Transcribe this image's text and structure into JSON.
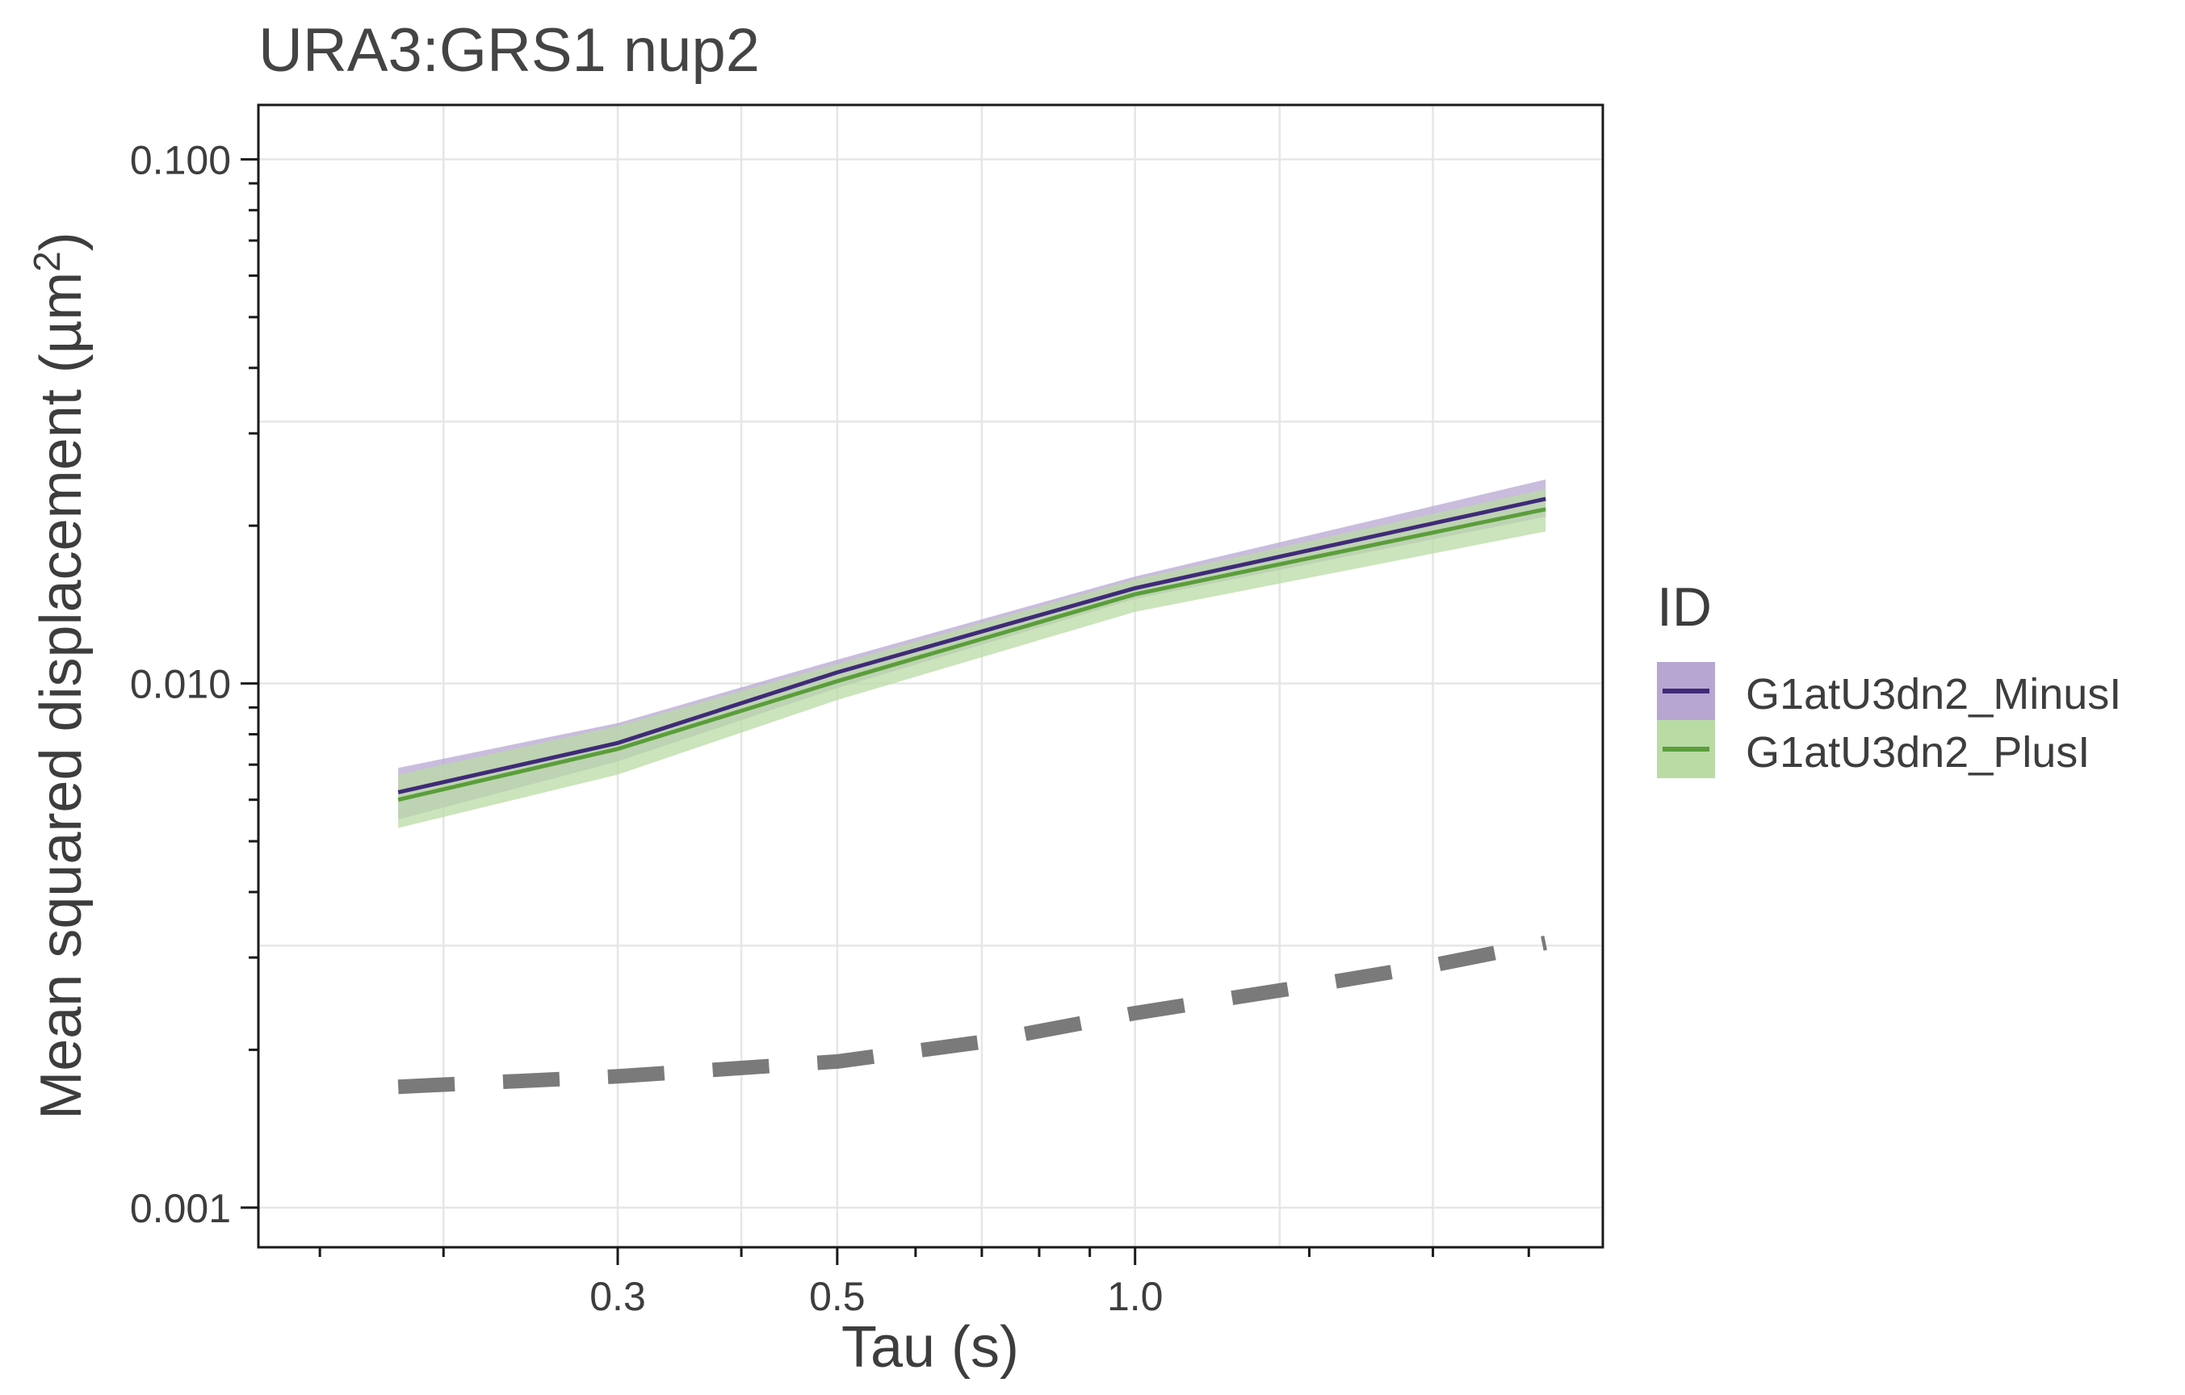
{
  "chart_data": {
    "type": "line",
    "title": "URA3:GRS1 nup2",
    "xlabel": "Tau (s)",
    "ylabel": "Mean squared displacement (µm²)",
    "ylabel_main": "Mean squared displacement (µm",
    "ylabel_sup": "2",
    "ylabel_close": ")",
    "x_scale": "log",
    "y_scale": "log",
    "xlim": [
      0.13,
      2.97
    ],
    "ylim": [
      0.00084,
      0.127
    ],
    "x_major_ticks": [
      0.3,
      0.5,
      1.0
    ],
    "x_tick_labels": [
      "0.3",
      "0.5",
      "1.0"
    ],
    "x_minor_ticks": [
      0.15,
      0.2,
      0.4,
      0.6,
      0.7,
      0.8,
      0.9,
      1.5,
      2.0,
      2.5
    ],
    "x_grid": [
      0.2,
      0.3,
      0.4,
      0.5,
      0.7,
      1.0,
      1.4,
      2.0
    ],
    "y_major_ticks": [
      0.001,
      0.01,
      0.1
    ],
    "y_tick_labels": [
      "0.001",
      "0.010",
      "0.100"
    ],
    "y_minor_ticks": [
      0.002,
      0.003,
      0.004,
      0.005,
      0.006,
      0.007,
      0.008,
      0.009,
      0.02,
      0.03,
      0.04,
      0.05,
      0.06,
      0.07,
      0.08,
      0.09
    ],
    "y_grid": [
      0.001,
      0.00316,
      0.01,
      0.0316,
      0.1
    ],
    "grid": true,
    "legend": {
      "title": "ID",
      "position": "right"
    },
    "series": [
      {
        "name": "G1atU3dn2_MinusI",
        "color": "#3f2a78",
        "ribbon_color": "#b7a6d2",
        "x": [
          0.18,
          0.3,
          0.5,
          1.0,
          2.6
        ],
        "y": [
          0.0062,
          0.0077,
          0.0105,
          0.0152,
          0.0225
        ],
        "lower": [
          0.0055,
          0.0071,
          0.0098,
          0.0145,
          0.0208
        ],
        "upper": [
          0.0069,
          0.0084,
          0.0111,
          0.016,
          0.0245
        ]
      },
      {
        "name": "G1atU3dn2_PlusI",
        "color": "#5a9e3a",
        "ribbon_color": "#b9dba4",
        "x": [
          0.18,
          0.3,
          0.5,
          1.0,
          2.6
        ],
        "y": [
          0.006,
          0.0075,
          0.0101,
          0.0148,
          0.0215
        ],
        "lower": [
          0.0053,
          0.0067,
          0.0093,
          0.0137,
          0.0195
        ],
        "upper": [
          0.0067,
          0.0083,
          0.0109,
          0.0158,
          0.0235
        ]
      }
    ],
    "reference_line": {
      "style": "dashed",
      "color": "#7a7a7a",
      "x": [
        0.18,
        0.3,
        0.5,
        0.7,
        1.0,
        1.5,
        2.0,
        2.6
      ],
      "y": [
        0.0017,
        0.00178,
        0.0019,
        0.00207,
        0.00235,
        0.00265,
        0.0029,
        0.0032
      ]
    }
  }
}
